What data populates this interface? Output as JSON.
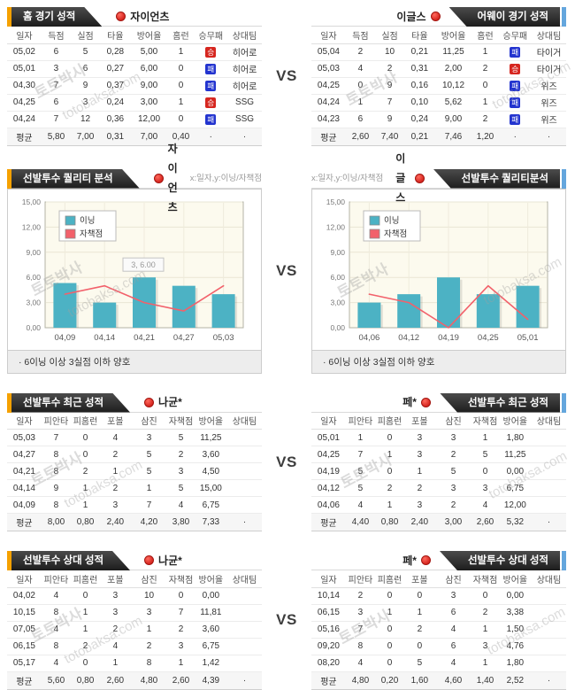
{
  "watermark": {
    "name": "토토박사",
    "domain": "totobaksa.com"
  },
  "vs_label": "VS",
  "colors": {
    "accent_orange": "#f5a100",
    "accent_blue": "#64a6dd",
    "banner_dark": "#2b2b2b",
    "win_red": "#d6261f",
    "lose_blue": "#2334cf",
    "bar_teal": "#4cb2c4",
    "line_red": "#f2616b"
  },
  "result_labels": {
    "win": "승",
    "lose": "패"
  },
  "game_columns": [
    "일자",
    "득점",
    "실점",
    "타율",
    "방어율",
    "홈런",
    "승무패",
    "상대팀"
  ],
  "pitcher_columns": [
    "일자",
    "피안타",
    "피홈런",
    "포볼",
    "삼진",
    "자책점",
    "방어율",
    "상대팀"
  ],
  "home_section": {
    "left": {
      "banner": "홈 경기 성적",
      "team": "자이언츠",
      "rows": [
        [
          "05,02",
          "6",
          "5",
          "0,28",
          "5,00",
          "1",
          "승",
          "히어로"
        ],
        [
          "05,01",
          "3",
          "6",
          "0,27",
          "6,00",
          "0",
          "패",
          "히어로"
        ],
        [
          "04,30",
          "7",
          "9",
          "0,37",
          "9,00",
          "0",
          "패",
          "히어로"
        ],
        [
          "04,25",
          "6",
          "3",
          "0,24",
          "3,00",
          "1",
          "승",
          "SSG"
        ],
        [
          "04,24",
          "7",
          "12",
          "0,36",
          "12,00",
          "0",
          "패",
          "SSG"
        ]
      ],
      "avg": [
        "평균",
        "5,80",
        "7,00",
        "0,31",
        "7,00",
        "0,40",
        "·",
        "·"
      ]
    },
    "right": {
      "banner": "어웨이 경기 성적",
      "team": "이글스",
      "rows": [
        [
          "05,04",
          "2",
          "10",
          "0,21",
          "11,25",
          "1",
          "패",
          "타이거"
        ],
        [
          "05,03",
          "4",
          "2",
          "0,31",
          "2,00",
          "2",
          "승",
          "타이거"
        ],
        [
          "04,25",
          "0",
          "9",
          "0,16",
          "10,12",
          "0",
          "패",
          "위즈"
        ],
        [
          "04,24",
          "1",
          "7",
          "0,10",
          "5,62",
          "1",
          "패",
          "위즈"
        ],
        [
          "04,23",
          "6",
          "9",
          "0,24",
          "9,00",
          "2",
          "패",
          "위즈"
        ]
      ],
      "avg": [
        "평균",
        "2,60",
        "7,40",
        "0,21",
        "7,46",
        "1,20",
        "·",
        "·"
      ]
    }
  },
  "quality_section": {
    "left": {
      "banner": "선발투수 퀄리티 분석",
      "team": "자이언츠",
      "axis_hint": "x:일자,y:이닝/자책점",
      "note": "·  6이닝 이상 3실점 이하 양호"
    },
    "right": {
      "banner": "선발투수 퀄리티분석",
      "team": "이글스",
      "axis_hint": "x:일자,y:이닝/자책점",
      "note": "·  6이닝 이상 3실점 이하 양호"
    }
  },
  "chart_data": [
    {
      "type": "bar+line",
      "title": "선발투수 퀄리티 분석 - 자이언츠",
      "categories": [
        "04,09",
        "04,14",
        "04,21",
        "04,27",
        "05,03"
      ],
      "series": [
        {
          "name": "이닝",
          "type": "bar",
          "color": "#4cb2c4",
          "values": [
            5.33,
            3,
            6,
            5,
            4
          ]
        },
        {
          "name": "자책점",
          "type": "line",
          "color": "#f2616b",
          "values": [
            4,
            5,
            3,
            2,
            5
          ]
        }
      ],
      "ylim": [
        0,
        15
      ],
      "yticks": [
        "15,00",
        "12,00",
        "9,00",
        "6,00",
        "3,00",
        "0,00"
      ],
      "grid": true,
      "legend_position": "top-left",
      "tooltip": {
        "text": "3, 6.00",
        "category_index": 2
      }
    },
    {
      "type": "bar+line",
      "title": "선발투수 퀄리티분석 - 이글스",
      "categories": [
        "04,06",
        "04,12",
        "04,19",
        "04,25",
        "05,01"
      ],
      "series": [
        {
          "name": "이닝",
          "type": "bar",
          "color": "#4cb2c4",
          "values": [
            3,
            4,
            6,
            4,
            5
          ]
        },
        {
          "name": "자책점",
          "type": "line",
          "color": "#f2616b",
          "values": [
            4,
            3,
            0,
            5,
            1
          ]
        }
      ],
      "ylim": [
        0,
        15
      ],
      "yticks": [
        "15,00",
        "12,00",
        "9,00",
        "6,00",
        "3,00",
        "0,00"
      ],
      "grid": true,
      "legend_position": "top-left",
      "tooltip": null
    }
  ],
  "recent_section": {
    "left": {
      "banner": "선발투수 최근 성적",
      "player": "나균*",
      "rows": [
        [
          "05,03",
          "7",
          "0",
          "4",
          "3",
          "5",
          "11,25",
          ""
        ],
        [
          "04,27",
          "8",
          "0",
          "2",
          "5",
          "2",
          "3,60",
          ""
        ],
        [
          "04,21",
          "8",
          "2",
          "1",
          "5",
          "3",
          "4,50",
          ""
        ],
        [
          "04,14",
          "9",
          "1",
          "2",
          "1",
          "5",
          "15,00",
          ""
        ],
        [
          "04,09",
          "8",
          "1",
          "3",
          "7",
          "4",
          "6,75",
          ""
        ]
      ],
      "avg": [
        "평균",
        "8,00",
        "0,80",
        "2,40",
        "4,20",
        "3,80",
        "7,33",
        "·"
      ]
    },
    "right": {
      "banner": "선발투수 최근 성적",
      "player": "페*",
      "rows": [
        [
          "05,01",
          "1",
          "0",
          "3",
          "3",
          "1",
          "1,80",
          ""
        ],
        [
          "04,25",
          "7",
          "1",
          "3",
          "2",
          "5",
          "11,25",
          ""
        ],
        [
          "04,19",
          "5",
          "0",
          "1",
          "5",
          "0",
          "0,00",
          ""
        ],
        [
          "04,12",
          "5",
          "2",
          "2",
          "3",
          "3",
          "6,75",
          ""
        ],
        [
          "04,06",
          "4",
          "1",
          "3",
          "2",
          "4",
          "12,00",
          ""
        ]
      ],
      "avg": [
        "평균",
        "4,40",
        "0,80",
        "2,40",
        "3,00",
        "2,60",
        "5,32",
        "·"
      ]
    }
  },
  "versus_section": {
    "left": {
      "banner": "선발투수 상대 성적",
      "player": "나균*",
      "rows": [
        [
          "04,02",
          "4",
          "0",
          "3",
          "10",
          "0",
          "0,00",
          ""
        ],
        [
          "10,15",
          "8",
          "1",
          "3",
          "3",
          "7",
          "11,81",
          ""
        ],
        [
          "07,05",
          "4",
          "1",
          "2",
          "1",
          "2",
          "3,60",
          ""
        ],
        [
          "06,15",
          "8",
          "2",
          "4",
          "2",
          "3",
          "6,75",
          ""
        ],
        [
          "05,17",
          "4",
          "0",
          "1",
          "8",
          "1",
          "1,42",
          ""
        ]
      ],
      "avg": [
        "평균",
        "5,60",
        "0,80",
        "2,60",
        "4,80",
        "2,60",
        "4,39",
        "·"
      ]
    },
    "right": {
      "banner": "선발투수 상대 성적",
      "player": "페*",
      "rows": [
        [
          "10,14",
          "2",
          "0",
          "0",
          "3",
          "0",
          "0,00",
          ""
        ],
        [
          "06,15",
          "3",
          "1",
          "1",
          "6",
          "2",
          "3,38",
          ""
        ],
        [
          "05,16",
          "7",
          "0",
          "2",
          "4",
          "1",
          "1,50",
          ""
        ],
        [
          "09,20",
          "8",
          "0",
          "0",
          "6",
          "3",
          "4,76",
          ""
        ],
        [
          "08,20",
          "4",
          "0",
          "5",
          "4",
          "1",
          "1,80",
          ""
        ]
      ],
      "avg": [
        "평균",
        "4,80",
        "0,20",
        "1,60",
        "4,60",
        "1,40",
        "2,52",
        "·"
      ]
    }
  }
}
